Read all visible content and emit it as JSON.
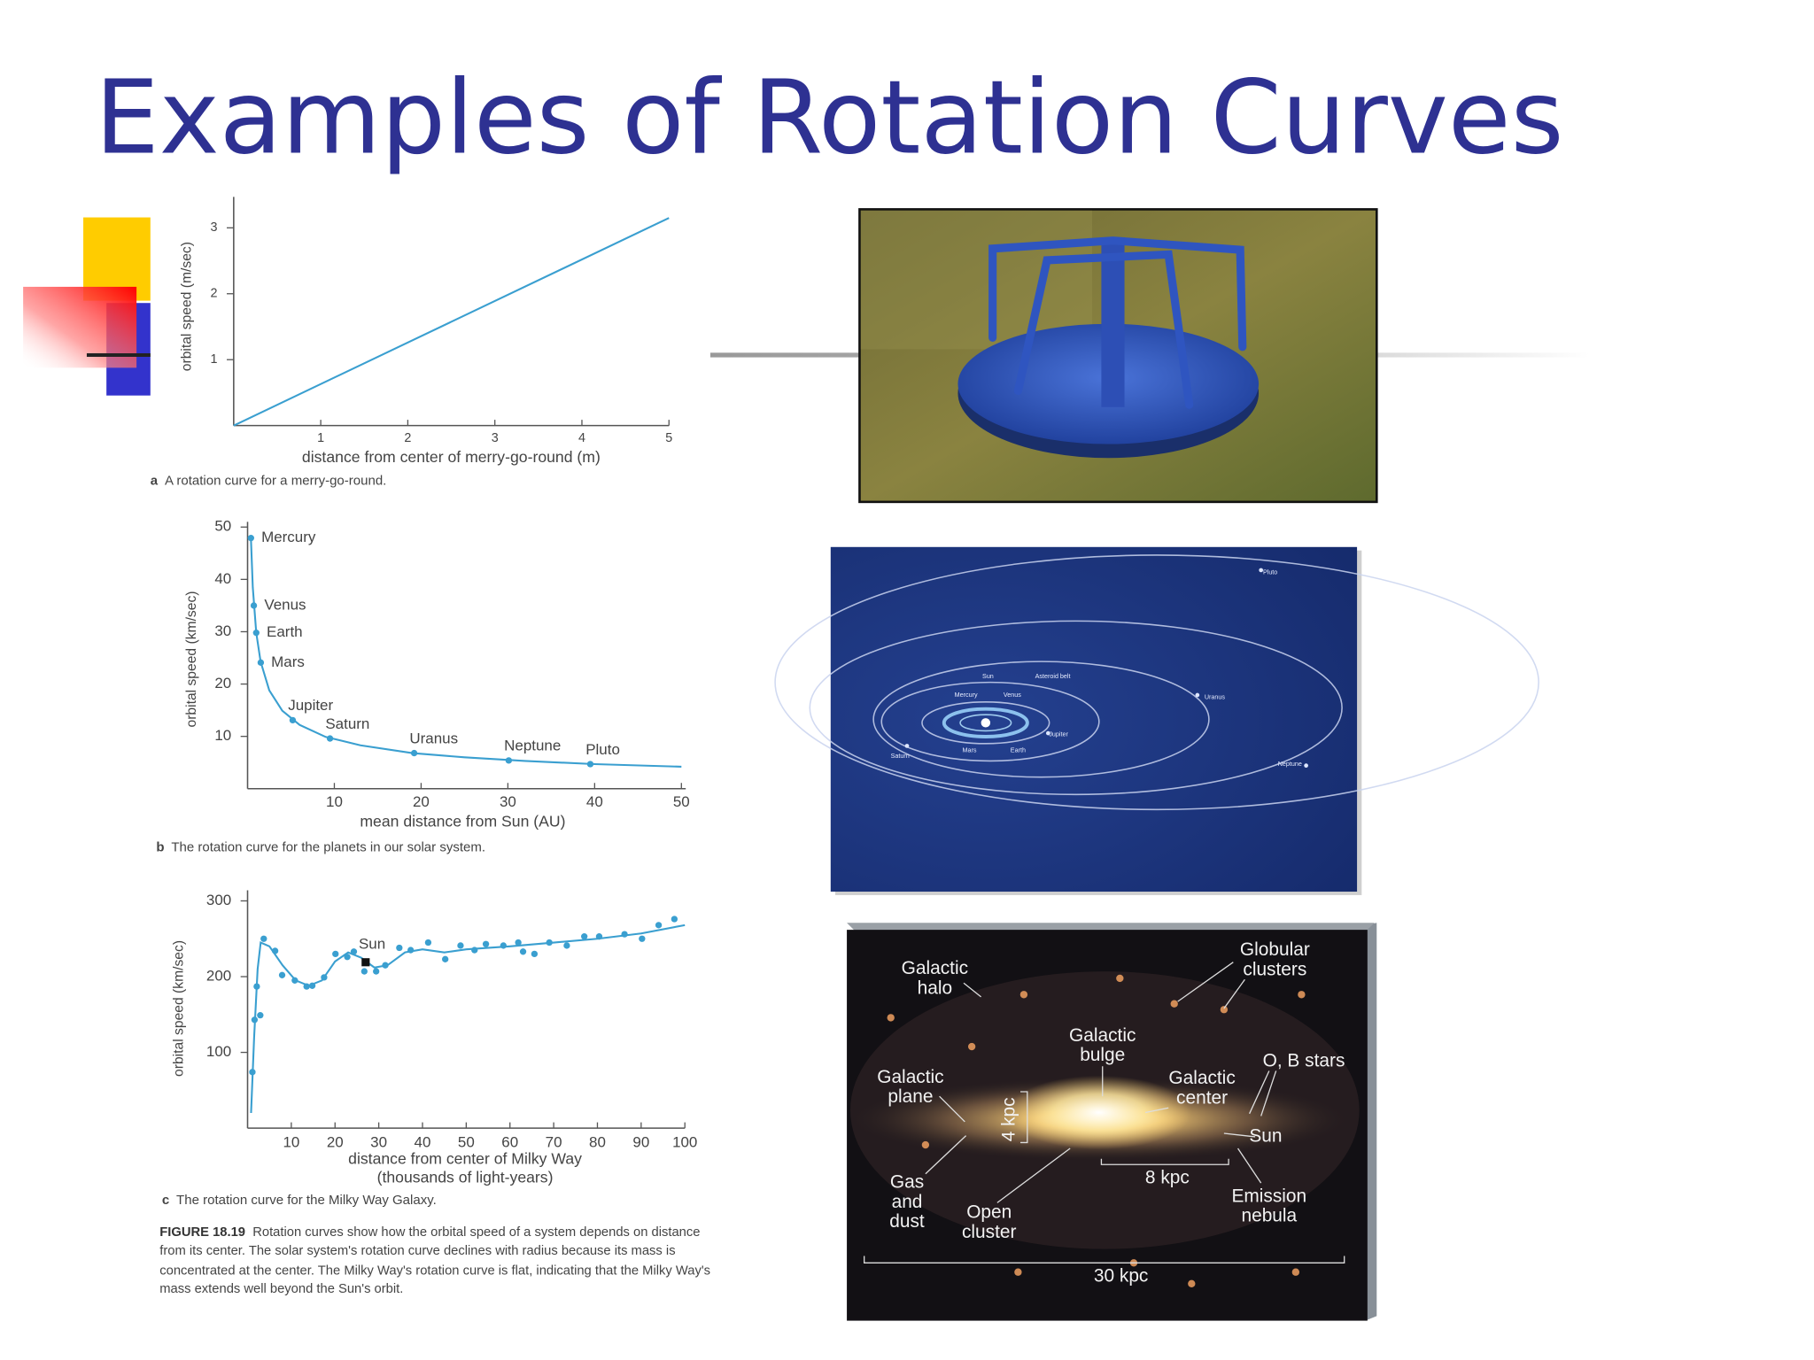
{
  "title": "Examples of Rotation Curves",
  "chart_data": [
    {
      "type": "line",
      "x_label": "distance from center of merry-go-round (m)",
      "y_label": "orbital speed (m/sec)",
      "caption_letter": "a",
      "caption": "A rotation curve for a merry-go-round.",
      "x": [
        0,
        5
      ],
      "values": [
        0,
        3.15
      ],
      "color": "#3a9fd0",
      "xlim": [
        0,
        5
      ],
      "ylim": [
        0,
        3.47
      ],
      "xticks": [
        1,
        2,
        3,
        4,
        5
      ],
      "yticks": [
        1,
        2,
        3
      ]
    },
    {
      "type": "scatter",
      "x_label": "mean distance from Sun (AU)",
      "y_label": "orbital speed (km/sec)",
      "caption_letter": "b",
      "caption": "The rotation curve for the planets in our solar system.",
      "x": [
        0.39,
        0.72,
        1,
        1.52,
        5.2,
        9.5,
        19.2,
        30.1,
        39.5
      ],
      "values": [
        47.9,
        35.0,
        29.8,
        24.1,
        13.1,
        9.6,
        6.8,
        5.4,
        4.7
      ],
      "point_labels": [
        "Mercury",
        "Venus",
        "Earth",
        "Mars",
        "Jupiter",
        "Saturn",
        "Uranus",
        "Neptune",
        "Pluto"
      ],
      "curve": {
        "x": [
          0.39,
          0.6,
          1,
          1.5,
          2.5,
          4,
          6,
          9,
          13,
          19,
          25,
          32,
          40,
          50
        ],
        "values": [
          47.7,
          38.5,
          29.8,
          24.3,
          18.8,
          14.9,
          12.2,
          9.9,
          8.3,
          6.8,
          6.0,
          5.3,
          4.7,
          4.2
        ]
      },
      "color": "#3a9fd0",
      "xlim": [
        0,
        50.5
      ],
      "ylim": [
        0,
        51
      ],
      "xticks": [
        10,
        20,
        30,
        40,
        50
      ],
      "yticks": [
        10,
        20,
        30,
        40,
        50
      ]
    },
    {
      "type": "scatter",
      "x_label": [
        "distance from center of Milky Way",
        "(thousands of light-years)"
      ],
      "y_label": "orbital speed (km/sec)",
      "caption_letter": "c",
      "caption": "The rotation curve for the Milky Way Galaxy.",
      "x": [
        1.1,
        1.6,
        2.1,
        2.9,
        3.7,
        6.3,
        7.9,
        10.8,
        13.5,
        14.8,
        17.5,
        20.1,
        22.8,
        24.3,
        26.7,
        29.4,
        31.5,
        34.7,
        37.3,
        41.3,
        45.2,
        48.7,
        51.9,
        54.5,
        58.5,
        61.9,
        63,
        65.6,
        69,
        73,
        77,
        80.4,
        86.2,
        90.2,
        94,
        97.6
      ],
      "values": [
        74,
        143,
        187,
        149,
        250,
        234,
        202,
        195,
        187,
        188,
        199,
        230,
        226,
        233,
        207,
        207,
        215,
        238,
        235,
        245,
        223,
        241,
        235,
        243,
        241,
        245,
        233,
        230,
        245,
        241,
        253,
        253,
        256,
        250,
        268,
        276
      ],
      "curve": {
        "x": [
          0.8,
          1.5,
          2.3,
          3,
          5,
          8,
          11,
          14,
          17,
          20,
          23,
          26,
          29,
          32,
          36,
          40,
          45,
          50,
          60,
          70,
          80,
          90,
          100
        ],
        "values": [
          20,
          120,
          210,
          245,
          240,
          215,
          195,
          188,
          195,
          220,
          232,
          225,
          212,
          215,
          232,
          236,
          232,
          236,
          240,
          245,
          250,
          257,
          268
        ]
      },
      "sun": {
        "label": "Sun",
        "x": 27,
        "value": 219
      },
      "color": "#3a9fd0",
      "xlim": [
        0,
        100
      ],
      "ylim": [
        0,
        314
      ],
      "xticks": [
        10,
        20,
        30,
        40,
        50,
        60,
        70,
        80,
        90,
        100
      ],
      "yticks": [
        100,
        200,
        300
      ]
    }
  ],
  "figure_caption": {
    "label": "FIGURE 18.19",
    "text": "Rotation curves show how the orbital speed of a system depends on distance from its center. The solar system's rotation curve declines with radius because its mass is concentrated at the center. The Milky Way's rotation curve is flat, indicating that the Milky Way's mass extends well beyond the Sun's orbit."
  },
  "solar_system_image": {
    "labels": [
      "Pluto",
      "Uranus",
      "Sun",
      "Asteroid belt",
      "Mercury",
      "Venus",
      "Jupiter",
      "Saturn",
      "Mars",
      "Earth",
      "Neptune"
    ]
  },
  "galaxy_image": {
    "labels": [
      {
        "lines": [
          "Galactic",
          "halo"
        ]
      },
      {
        "lines": [
          "Globular",
          "clusters"
        ]
      },
      {
        "lines": [
          "Galactic",
          "bulge"
        ]
      },
      {
        "lines": [
          "O, B stars"
        ]
      },
      {
        "lines": [
          "Galactic",
          "plane"
        ]
      },
      {
        "lines": [
          "Galactic",
          "center"
        ]
      },
      {
        "lines": [
          "4 kpc"
        ]
      },
      {
        "lines": [
          "Sun"
        ]
      },
      {
        "lines": [
          "8 kpc"
        ]
      },
      {
        "lines": [
          "Gas",
          "and",
          "dust"
        ]
      },
      {
        "lines": [
          "Open",
          "cluster"
        ]
      },
      {
        "lines": [
          "Emission",
          "nebula"
        ]
      },
      {
        "lines": [
          "30 kpc"
        ]
      }
    ]
  }
}
